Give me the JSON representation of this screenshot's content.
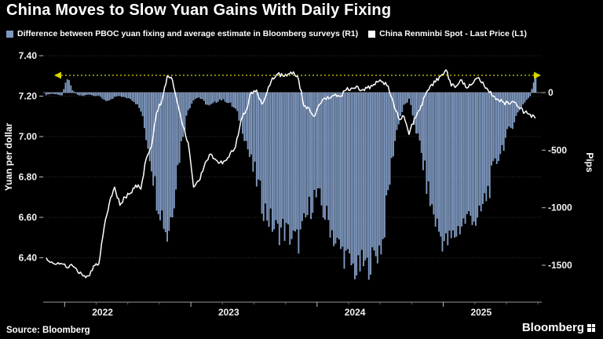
{
  "header": {
    "title": "China Moves to Slow Yuan Gains With Daily Fixing"
  },
  "legend": [
    {
      "label": "Difference between PBOC yuan fixing and average estimate in Bloomberg surveys (R1)",
      "color": "#7f99c0"
    },
    {
      "label": "China Renminbi Spot - Last Price (L1)",
      "color": "#ffffff"
    }
  ],
  "footer": {
    "source": "Source: Bloomberg",
    "logo": "Bloomberg"
  },
  "colors": {
    "background": "#000000",
    "bars": "#7f99c0",
    "line": "#ffffff",
    "annotation": "#d6d600",
    "grid": "#303030"
  },
  "chart_data": {
    "type": "line+bar",
    "title": "China Moves to Slow Yuan Gains With Daily Fixing",
    "legend_position": "top",
    "left_axis": {
      "label": "Yuan per dollar",
      "ticks": [
        7.4,
        7.2,
        7.0,
        6.8,
        6.6,
        6.4
      ],
      "tick_labels": [
        "7.40",
        "7.20",
        "7.00",
        "6.80",
        "6.60",
        "6.40"
      ],
      "range": [
        6.18,
        7.45
      ]
    },
    "right_axis": {
      "label": "Pips",
      "ticks": [
        0,
        -500,
        -1000,
        -1500
      ],
      "tick_labels": [
        "0",
        "-500",
        "-1000",
        "-1500"
      ],
      "range": [
        -1820,
        395
      ]
    },
    "x_axis": {
      "ticks": [
        2022,
        2023,
        2024,
        2025
      ],
      "tick_labels": [
        "2022",
        "2023",
        "2024",
        "2025"
      ],
      "range": [
        2021.83,
        2025.78
      ]
    },
    "annotation": {
      "type": "dotted-line",
      "value_pips": 150,
      "style": "dotted",
      "color": "#d6d600"
    },
    "x": [
      2021.854,
      2021.896,
      2021.938,
      2021.979,
      2022.021,
      2022.063,
      2022.104,
      2022.146,
      2022.188,
      2022.229,
      2022.271,
      2022.313,
      2022.354,
      2022.396,
      2022.438,
      2022.479,
      2022.521,
      2022.563,
      2022.604,
      2022.646,
      2022.688,
      2022.729,
      2022.771,
      2022.813,
      2022.854,
      2022.896,
      2022.938,
      2022.979,
      2023.021,
      2023.063,
      2023.104,
      2023.146,
      2023.188,
      2023.229,
      2023.271,
      2023.313,
      2023.354,
      2023.396,
      2023.438,
      2023.479,
      2023.521,
      2023.563,
      2023.604,
      2023.646,
      2023.688,
      2023.729,
      2023.771,
      2023.813,
      2023.854,
      2023.896,
      2023.938,
      2023.979,
      2024.021,
      2024.063,
      2024.104,
      2024.146,
      2024.188,
      2024.229,
      2024.271,
      2024.313,
      2024.354,
      2024.396,
      2024.438,
      2024.479,
      2024.521,
      2024.563,
      2024.604,
      2024.646,
      2024.688,
      2024.729,
      2024.771,
      2024.813,
      2024.854,
      2024.896,
      2024.938,
      2024.979,
      2025.021,
      2025.063,
      2025.104,
      2025.146,
      2025.188,
      2025.229,
      2025.271,
      2025.313,
      2025.354,
      2025.396,
      2025.438,
      2025.479,
      2025.521,
      2025.563,
      2025.604,
      2025.646,
      2025.688,
      2025.729
    ],
    "series": [
      {
        "name": "Difference between PBOC yuan fixing and average estimate in Bloomberg surveys",
        "axis": "right",
        "type": "bar",
        "unit": "pips",
        "color": "#7f99c0",
        "values": [
          -20,
          -10,
          -15,
          -25,
          130,
          20,
          -20,
          -30,
          -15,
          -25,
          -30,
          -60,
          -80,
          -40,
          -30,
          -45,
          -50,
          -90,
          -160,
          -380,
          -620,
          -900,
          -1050,
          -1250,
          -1000,
          -650,
          -350,
          -150,
          -60,
          -40,
          -80,
          -120,
          -90,
          -60,
          -70,
          -100,
          -150,
          -260,
          -420,
          -620,
          -760,
          -950,
          -1060,
          -1150,
          -1210,
          -1180,
          -1230,
          -1270,
          -1290,
          -1160,
          -1010,
          -900,
          -950,
          -1060,
          -1150,
          -1300,
          -1360,
          -1430,
          -1500,
          -1560,
          -1490,
          -1520,
          -1450,
          -1390,
          -1290,
          -880,
          -500,
          -250,
          -120,
          -60,
          -260,
          -460,
          -700,
          -950,
          -1110,
          -1250,
          -1310,
          -1280,
          -1210,
          -1140,
          -1100,
          -1050,
          -1150,
          -990,
          -850,
          -700,
          -540,
          -440,
          -340,
          -240,
          -150,
          -80,
          -30,
          150
        ]
      },
      {
        "name": "China Renminbi Spot - Last Price",
        "axis": "left",
        "type": "line",
        "unit": "yuan per dollar",
        "color": "#ffffff",
        "values": [
          6.4,
          6.38,
          6.37,
          6.37,
          6.35,
          6.36,
          6.33,
          6.31,
          6.31,
          6.36,
          6.37,
          6.55,
          6.67,
          6.75,
          6.66,
          6.7,
          6.72,
          6.76,
          6.74,
          6.89,
          6.95,
          7.12,
          7.18,
          7.3,
          7.28,
          7.16,
          7.05,
          6.97,
          6.75,
          6.78,
          6.85,
          6.91,
          6.89,
          6.87,
          6.88,
          6.92,
          6.95,
          7.08,
          7.13,
          7.22,
          7.23,
          7.16,
          7.22,
          7.29,
          7.31,
          7.3,
          7.31,
          7.32,
          7.28,
          7.15,
          7.14,
          7.1,
          7.16,
          7.19,
          7.19,
          7.21,
          7.2,
          7.23,
          7.24,
          7.25,
          7.23,
          7.24,
          7.25,
          7.27,
          7.27,
          7.25,
          7.17,
          7.09,
          7.1,
          7.01,
          7.09,
          7.13,
          7.2,
          7.25,
          7.27,
          7.3,
          7.33,
          7.25,
          7.25,
          7.28,
          7.24,
          7.26,
          7.29,
          7.27,
          7.23,
          7.2,
          7.18,
          7.17,
          7.16,
          7.17,
          7.14,
          7.12,
          7.11,
          7.09
        ]
      }
    ]
  }
}
